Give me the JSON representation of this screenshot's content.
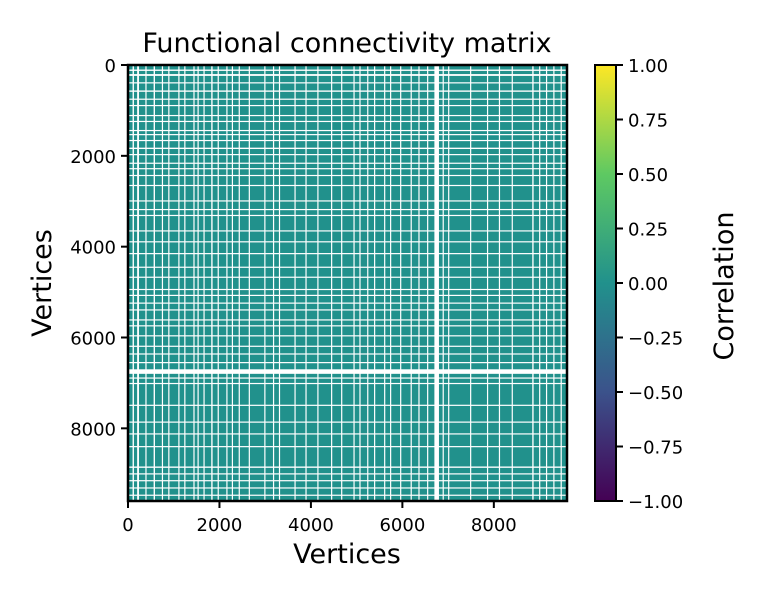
{
  "chart_data": {
    "type": "heatmap",
    "title": "Functional connectivity matrix",
    "xlabel": "Vertices",
    "ylabel": "Vertices",
    "matrix_size": 9600,
    "xlim": [
      0,
      9600
    ],
    "ylim": [
      9600,
      0
    ],
    "x_ticks": [
      0,
      2000,
      4000,
      6000,
      8000
    ],
    "y_ticks": [
      0,
      2000,
      4000,
      6000,
      8000
    ],
    "dominant_value": 0.0,
    "missing_value_color": "#ffffff",
    "missing_vertex_ranges": [
      [
        100,
        130
      ],
      [
        200,
        240
      ],
      [
        380,
        400
      ],
      [
        560,
        590
      ],
      [
        740,
        760
      ],
      [
        880,
        900
      ],
      [
        1100,
        1120
      ],
      [
        1230,
        1250
      ],
      [
        1430,
        1450
      ],
      [
        1520,
        1540
      ],
      [
        1650,
        1670
      ],
      [
        1820,
        1850
      ],
      [
        1960,
        1980
      ],
      [
        2150,
        2170
      ],
      [
        2270,
        2290
      ],
      [
        2420,
        2440
      ],
      [
        2640,
        2660
      ],
      [
        2980,
        3000
      ],
      [
        3170,
        3190
      ],
      [
        3300,
        3320
      ],
      [
        3640,
        3660
      ],
      [
        3880,
        3900
      ],
      [
        4140,
        4160
      ],
      [
        4440,
        4460
      ],
      [
        4660,
        4680
      ],
      [
        4930,
        4950
      ],
      [
        5060,
        5080
      ],
      [
        5230,
        5250
      ],
      [
        5380,
        5400
      ],
      [
        5600,
        5620
      ],
      [
        5730,
        5750
      ],
      [
        5950,
        5970
      ],
      [
        6180,
        6200
      ],
      [
        6350,
        6370
      ],
      [
        6540,
        6560
      ],
      [
        6700,
        6800
      ],
      [
        6880,
        6900
      ],
      [
        7000,
        7020
      ],
      [
        7480,
        7500
      ],
      [
        7850,
        7870
      ],
      [
        8110,
        8130
      ],
      [
        8390,
        8410
      ],
      [
        8840,
        8870
      ],
      [
        8990,
        9010
      ],
      [
        9140,
        9160
      ],
      [
        9300,
        9320
      ],
      [
        9460,
        9480
      ]
    ],
    "colorbar": {
      "label": "Correlation",
      "vmin": -1.0,
      "vmax": 1.0,
      "ticks": [
        1.0,
        0.75,
        0.5,
        0.25,
        0.0,
        -0.25,
        -0.5,
        -0.75,
        -1.0
      ],
      "tick_labels": [
        "1.00",
        "0.75",
        "0.50",
        "0.25",
        "0.00",
        "−0.25",
        "−0.50",
        "−0.75",
        "−1.00"
      ],
      "colormap": "viridis",
      "colormap_stops": [
        "#440154",
        "#3b528b",
        "#21918c",
        "#5ec962",
        "#fde725"
      ]
    }
  }
}
